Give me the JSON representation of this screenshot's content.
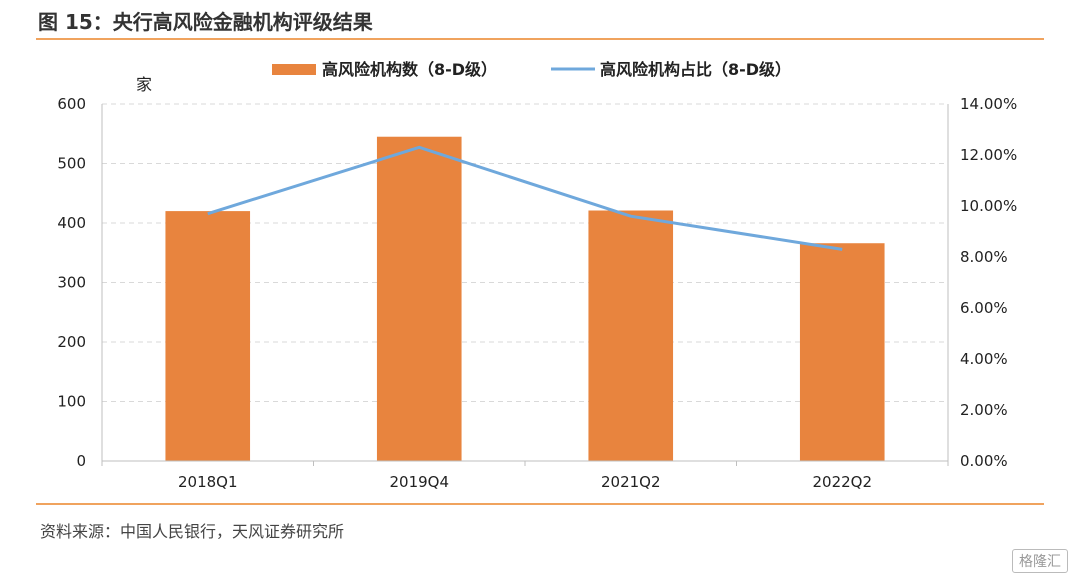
{
  "figure": {
    "title": "图 15：央行高风险金融机构评级结果",
    "source": "资料来源：中国人民银行，天风证券研究所",
    "watermark": "格隆汇"
  },
  "colors": {
    "bar": "#e8843e",
    "line": "#6fa8dc",
    "accent": "#f0a35e"
  },
  "chart_data": {
    "type": "bar",
    "categories": [
      "2018Q1",
      "2019Q4",
      "2021Q2",
      "2022Q2"
    ],
    "series": [
      {
        "name": "高风险机构数（8-D级）",
        "type": "bar",
        "axis": "left",
        "values": [
          420,
          545,
          421,
          366
        ]
      },
      {
        "name": "高风险机构占比（8-D级）",
        "type": "line",
        "axis": "right",
        "values": [
          9.7,
          12.3,
          9.6,
          8.3
        ]
      }
    ],
    "y_left": {
      "unit_label": "家",
      "min": 0,
      "max": 600,
      "ticks": [
        "0",
        "100",
        "200",
        "300",
        "400",
        "500",
        "600"
      ]
    },
    "y_right": {
      "min": 0,
      "max": 14,
      "ticks": [
        "0.00%",
        "2.00%",
        "4.00%",
        "6.00%",
        "8.00%",
        "10.00%",
        "12.00%",
        "14.00%"
      ]
    },
    "grid": true,
    "legend": "top-center"
  }
}
